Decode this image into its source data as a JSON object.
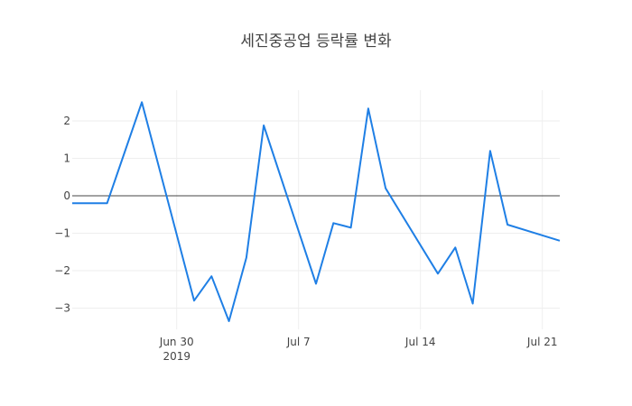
{
  "chart_data": {
    "type": "line",
    "title": "세진중공업 등락률 변화",
    "xlabel": "",
    "ylabel": "",
    "x": [
      "2019-06-24",
      "2019-06-26",
      "2019-06-28",
      "2019-07-01",
      "2019-07-02",
      "2019-07-03",
      "2019-07-04",
      "2019-07-05",
      "2019-07-08",
      "2019-07-09",
      "2019-07-10",
      "2019-07-11",
      "2019-07-12",
      "2019-07-15",
      "2019-07-16",
      "2019-07-17",
      "2019-07-18",
      "2019-07-19",
      "2019-07-22"
    ],
    "series": [
      {
        "name": "등락률",
        "color": "#1f7fe5",
        "values": [
          -0.2,
          -0.2,
          2.5,
          -2.8,
          -2.15,
          -3.35,
          -1.65,
          1.88,
          -2.35,
          -0.73,
          -0.85,
          2.33,
          0.2,
          -2.08,
          -1.38,
          -2.88,
          1.2,
          -0.77,
          -1.2
        ]
      }
    ],
    "xticks": [
      {
        "date": "2019-06-30",
        "label": "Jun 30",
        "sublabel": "2019"
      },
      {
        "date": "2019-07-07",
        "label": "Jul 7",
        "sublabel": ""
      },
      {
        "date": "2019-07-14",
        "label": "Jul 14",
        "sublabel": ""
      },
      {
        "date": "2019-07-21",
        "label": "Jul 21",
        "sublabel": ""
      }
    ],
    "yticks": [
      2,
      1,
      0,
      -1,
      -2,
      -3
    ],
    "ytick_labels": [
      "2",
      "1",
      "0",
      "−1",
      "−2",
      "−3"
    ],
    "ylim": [
      -3.6,
      2.85
    ],
    "xlim": [
      "2019-06-24",
      "2019-07-22"
    ],
    "grid": true,
    "zeroline": true,
    "legend": "none"
  }
}
